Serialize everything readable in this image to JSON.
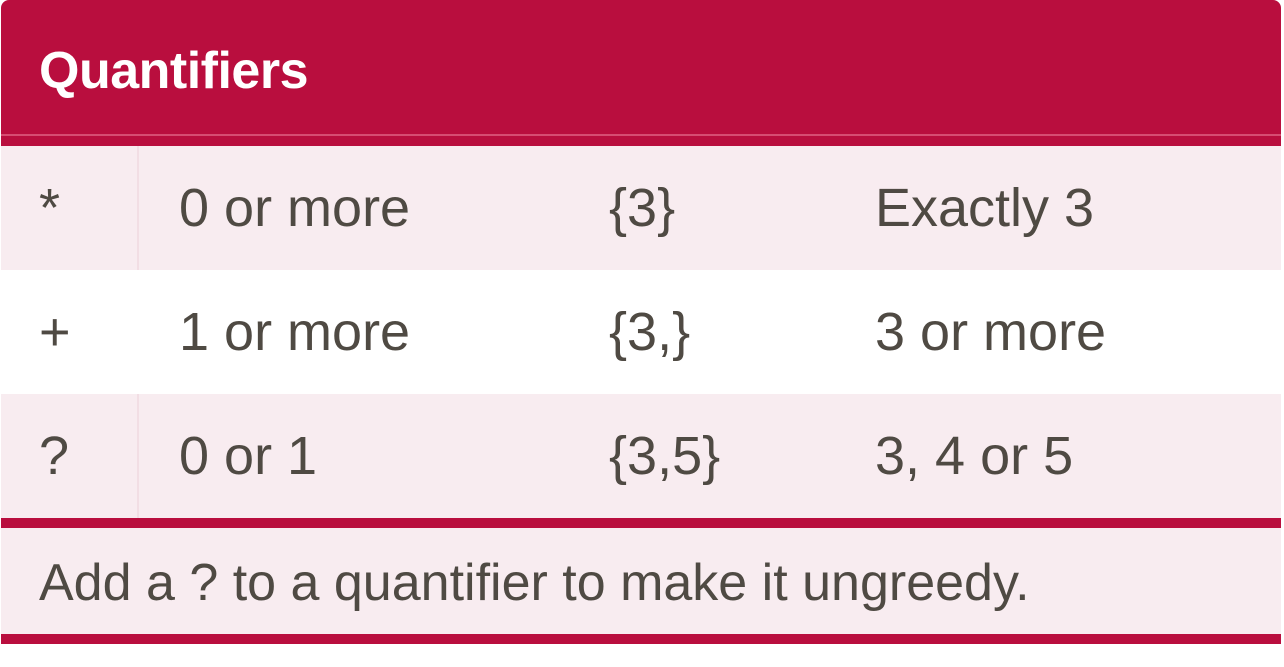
{
  "panel": {
    "title": "Quantifiers",
    "rows": [
      {
        "symbol": "*",
        "meaning": "0 or more",
        "example": "{3}",
        "example_meaning": "Exactly 3"
      },
      {
        "symbol": "+",
        "meaning": "1 or more",
        "example": "{3,}",
        "example_meaning": "3 or more"
      },
      {
        "symbol": "?",
        "meaning": "0 or 1",
        "example": "{3,5}",
        "example_meaning": "3, 4 or 5"
      }
    ],
    "note": "Add a ? to a quantifier to make it ungreedy."
  },
  "colors": {
    "accent": "#b90e3e",
    "row_shaded": "#f8ecf0",
    "text": "#4f4a43",
    "header_text": "#ffffff"
  }
}
